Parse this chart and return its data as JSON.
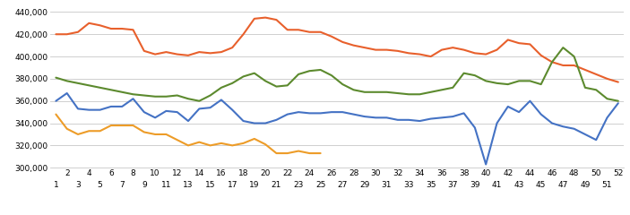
{
  "weeks": [
    1,
    2,
    3,
    4,
    5,
    6,
    7,
    8,
    9,
    10,
    11,
    12,
    13,
    14,
    15,
    16,
    17,
    18,
    19,
    20,
    21,
    22,
    23,
    24,
    25,
    26,
    27,
    28,
    29,
    30,
    31,
    32,
    33,
    34,
    35,
    36,
    37,
    38,
    39,
    40,
    41,
    42,
    43,
    44,
    45,
    46,
    47,
    48,
    49,
    50,
    51,
    52
  ],
  "red": [
    420000,
    420000,
    422000,
    430000,
    428000,
    425000,
    425000,
    424000,
    405000,
    402000,
    404000,
    402000,
    401000,
    404000,
    403000,
    404000,
    408000,
    420000,
    434000,
    435000,
    433000,
    424000,
    424000,
    422000,
    422000,
    418000,
    413000,
    410000,
    408000,
    406000,
    406000,
    405000,
    403000,
    402000,
    400000,
    406000,
    408000,
    406000,
    403000,
    402000,
    406000,
    415000,
    412000,
    411000,
    401000,
    395000,
    392000,
    392000,
    388000,
    384000,
    380000,
    377000
  ],
  "green": [
    381000,
    378000,
    376000,
    374000,
    372000,
    370000,
    368000,
    366000,
    365000,
    364000,
    364000,
    365000,
    362000,
    360000,
    365000,
    372000,
    376000,
    382000,
    385000,
    378000,
    373000,
    374000,
    384000,
    387000,
    388000,
    383000,
    375000,
    370000,
    368000,
    368000,
    368000,
    367000,
    366000,
    366000,
    368000,
    370000,
    372000,
    385000,
    383000,
    378000,
    376000,
    375000,
    378000,
    378000,
    375000,
    395000,
    408000,
    400000,
    372000,
    370000,
    362000,
    360000
  ],
  "blue": [
    360000,
    367000,
    353000,
    352000,
    352000,
    355000,
    355000,
    362000,
    350000,
    345000,
    351000,
    350000,
    342000,
    353000,
    354000,
    361000,
    352000,
    342000,
    340000,
    340000,
    343000,
    348000,
    350000,
    349000,
    349000,
    350000,
    350000,
    348000,
    346000,
    345000,
    345000,
    343000,
    343000,
    342000,
    344000,
    345000,
    346000,
    349000,
    336000,
    303000,
    340000,
    355000,
    350000,
    360000,
    348000,
    340000,
    337000,
    335000,
    330000,
    325000,
    345000,
    358000
  ],
  "orange": [
    348000,
    335000,
    330000,
    333000,
    333000,
    338000,
    338000,
    338000,
    332000,
    330000,
    330000,
    325000,
    320000,
    323000,
    320000,
    322000,
    320000,
    322000,
    326000,
    321000,
    313000,
    313000,
    315000,
    313000,
    313000,
    null,
    null,
    null,
    null,
    null,
    null,
    null,
    null,
    null,
    null,
    null,
    null,
    null,
    null,
    null,
    null,
    null,
    null,
    null,
    null,
    null,
    null,
    null,
    null,
    null,
    null,
    null
  ],
  "red_color": "#e8602c",
  "green_color": "#5c8a2e",
  "blue_color": "#4472c4",
  "orange_color": "#ed9c28",
  "bg_color": "#ffffff",
  "grid_color": "#c8c8c8",
  "ylim": [
    300000,
    445000
  ],
  "yticks": [
    300000,
    320000,
    340000,
    360000,
    380000,
    400000,
    420000,
    440000
  ],
  "even_weeks": [
    2,
    4,
    6,
    8,
    10,
    12,
    14,
    16,
    18,
    20,
    22,
    24,
    26,
    28,
    30,
    32,
    34,
    36,
    38,
    40,
    42,
    44,
    46,
    48,
    50,
    52
  ],
  "odd_weeks": [
    1,
    3,
    5,
    7,
    9,
    11,
    13,
    15,
    17,
    19,
    21,
    23,
    25,
    27,
    29,
    31,
    33,
    35,
    37,
    39,
    41,
    43,
    45,
    47,
    49,
    51
  ]
}
